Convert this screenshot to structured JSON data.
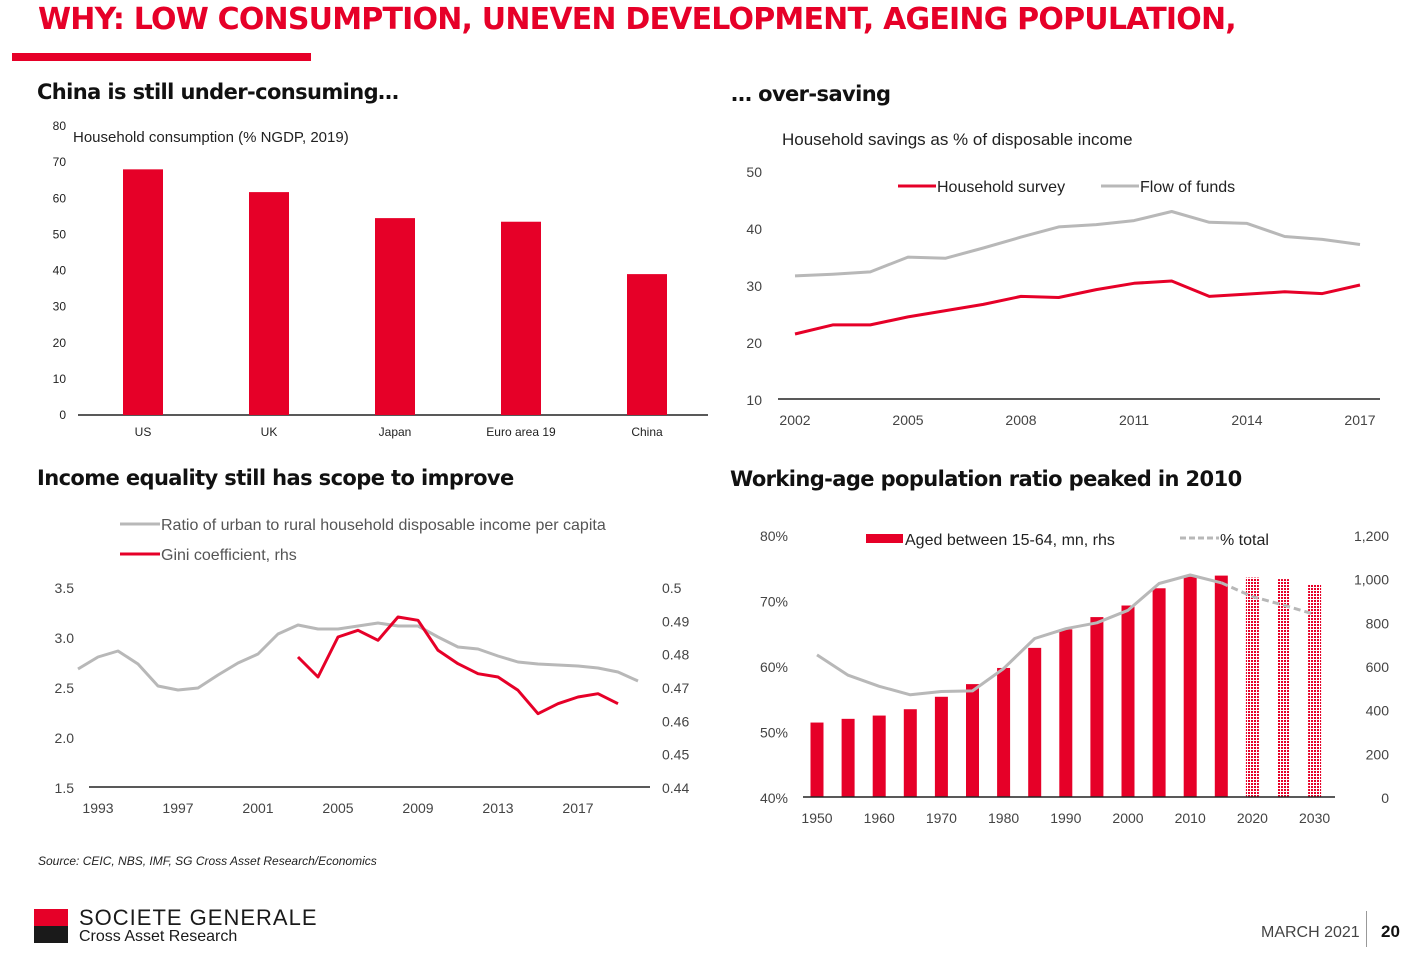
{
  "header": {
    "title": "WHY: LOW CONSUMPTION, UNEVEN DEVELOPMENT, AGEING POPULATION,"
  },
  "panels": {
    "consumption_title": "China is still under-consuming…",
    "savings_title": "… over-saving",
    "income_title": "Income equality still has scope to improve",
    "population_title": "Working-age population ratio peaked in 2010"
  },
  "colors": {
    "brand_red": "#e60028",
    "series_grey": "#b8b8b8",
    "axis": "#333333"
  },
  "chart_data": [
    {
      "id": "consumption",
      "type": "bar",
      "title": "Household consumption (% NGDP, 2019)",
      "xlabel": "",
      "ylabel": "",
      "categories": [
        "US",
        "UK",
        "Japan",
        "Euro area 19",
        "China"
      ],
      "values": [
        68,
        61.7,
        54.5,
        53.5,
        39
      ],
      "ylim": [
        0,
        80
      ],
      "yticks": [
        0,
        10,
        20,
        30,
        40,
        50,
        60,
        70,
        80
      ],
      "grid": false,
      "color": "#e60028"
    },
    {
      "id": "savings",
      "type": "line",
      "title": "Household savings as % of disposable income",
      "x": [
        2002,
        2003,
        2004,
        2005,
        2006,
        2007,
        2008,
        2009,
        2010,
        2011,
        2012,
        2013,
        2014,
        2015,
        2016,
        2017
      ],
      "xticks": [
        "2002",
        "2005",
        "2008",
        "2011",
        "2014",
        "2017"
      ],
      "ylim": [
        10,
        50
      ],
      "yticks": [
        "10",
        "20",
        "30",
        "40",
        "50"
      ],
      "legend_position": "top-center",
      "grid": false,
      "series": [
        {
          "name": "Household survey",
          "color": "#e60028",
          "values": [
            21.4,
            23,
            23,
            24.4,
            25.5,
            26.6,
            28,
            27.8,
            29.2,
            30.3,
            30.7,
            28,
            28.4,
            28.8,
            28.5,
            30
          ]
        },
        {
          "name": "Flow of funds",
          "color": "#b8b8b8",
          "values": [
            31.6,
            31.9,
            32.3,
            34.9,
            34.7,
            36.5,
            38.4,
            40.2,
            40.6,
            41.3,
            42.9,
            41,
            40.8,
            38.5,
            38,
            37.1
          ]
        }
      ]
    },
    {
      "id": "income",
      "type": "line",
      "title": "",
      "x": [
        1992,
        1993,
        1994,
        1995,
        1996,
        1997,
        1998,
        1999,
        2000,
        2001,
        2002,
        2003,
        2004,
        2005,
        2006,
        2007,
        2008,
        2009,
        2010,
        2011,
        2012,
        2013,
        2014,
        2015,
        2016,
        2017,
        2018,
        2019,
        2020
      ],
      "xticks": [
        "1993",
        "1997",
        "2001",
        "2005",
        "2009",
        "2013",
        "2017"
      ],
      "ylim_left": [
        1.5,
        3.5
      ],
      "yticks_left": [
        "1.5",
        "2.0",
        "2.5",
        "3.0",
        "3.5"
      ],
      "ylim_right": [
        0.44,
        0.5
      ],
      "yticks_right": [
        "0.44",
        "0.45",
        "0.46",
        "0.47",
        "0.48",
        "0.49",
        "0.5"
      ],
      "legend_position": "top",
      "grid": false,
      "series": [
        {
          "name": "Ratio of urban to rural household disposable income per capita",
          "axis": "left",
          "color": "#b8b8b8",
          "values": [
            2.68,
            2.8,
            2.86,
            2.73,
            2.51,
            2.47,
            2.49,
            2.62,
            2.74,
            2.83,
            3.03,
            3.12,
            3.08,
            3.08,
            3.11,
            3.14,
            3.11,
            3.11,
            3.0,
            2.9,
            2.88,
            2.81,
            2.75,
            2.73,
            2.72,
            2.71,
            2.69,
            2.65,
            2.56
          ]
        },
        {
          "name": "Gini coefficient, rhs",
          "axis": "right",
          "color": "#e60028",
          "values": [
            null,
            null,
            null,
            null,
            null,
            null,
            null,
            null,
            null,
            null,
            null,
            0.479,
            0.473,
            0.485,
            0.487,
            0.484,
            0.491,
            0.49,
            0.481,
            0.477,
            0.474,
            0.473,
            0.469,
            0.462,
            0.465,
            0.467,
            0.468,
            0.465,
            null
          ]
        }
      ]
    },
    {
      "id": "population",
      "type": "bar",
      "title": "",
      "x": [
        1950,
        1955,
        1960,
        1965,
        1970,
        1975,
        1980,
        1985,
        1990,
        1995,
        2000,
        2005,
        2010,
        2015,
        2020,
        2025,
        2030
      ],
      "xticks": [
        "1950",
        "1960",
        "1970",
        "1980",
        "1990",
        "2000",
        "2010",
        "2020",
        "2030"
      ],
      "ylim_left": [
        40,
        80
      ],
      "yticks_left": [
        "40%",
        "50%",
        "60%",
        "70%",
        "80%"
      ],
      "ylim_right": [
        0,
        1200
      ],
      "yticks_right": [
        "0",
        "200",
        "400",
        "600",
        "800",
        "1,000",
        "1,200"
      ],
      "forecast_from": 2020,
      "legend_position": "top",
      "grid": false,
      "series": [
        {
          "name": "Aged between 15-64, mn, rhs",
          "kind": "bar",
          "axis": "right",
          "color": "#e60028",
          "values": [
            341,
            358,
            373,
            402,
            459,
            517,
            591,
            683,
            768,
            824,
            877,
            956,
            1009,
            1014,
            1005,
            998,
            974
          ]
        },
        {
          "name": "% total",
          "kind": "line",
          "axis": "left",
          "color": "#b8b8b8",
          "values": [
            61.7,
            58.6,
            56.9,
            55.6,
            56.1,
            56.2,
            59.6,
            64.2,
            65.7,
            66.6,
            68.5,
            72.6,
            73.9,
            72.7,
            70.6,
            69.3,
            67.9
          ]
        }
      ]
    }
  ],
  "footer": {
    "source": "Source: CEIC, NBS, IMF, SG Cross Asset Research/Economics",
    "brand": "SOCIETE GENERALE",
    "brand_sub": "Cross Asset Research",
    "date": "MARCH 2021",
    "page": "20"
  }
}
